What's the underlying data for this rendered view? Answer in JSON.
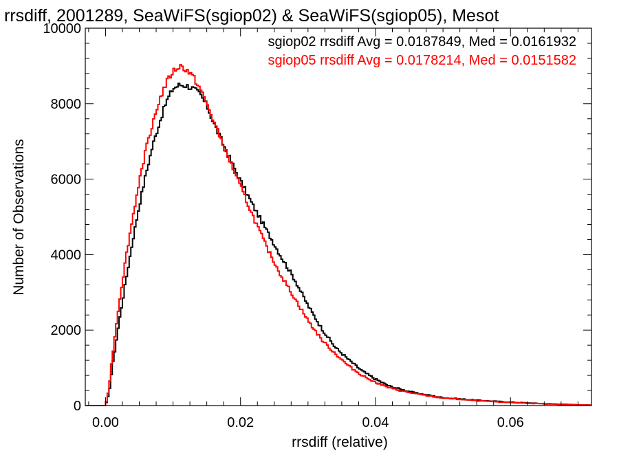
{
  "chart_data": {
    "type": "line",
    "title": "rrsdiff, 2001289, SeaWiFS(sgiop02) & SeaWiFS(sgiop05), Mesot",
    "xlabel": "rrsdiff (relative)",
    "ylabel": "Number of Observations",
    "xlim": [
      -0.003,
      0.072
    ],
    "ylim": [
      0,
      10000
    ],
    "x_ticks": [
      0.0,
      0.02,
      0.04,
      0.06
    ],
    "x_tick_labels": [
      "0.00",
      "0.02",
      "0.04",
      "0.06"
    ],
    "y_ticks": [
      0,
      2000,
      4000,
      6000,
      8000,
      10000
    ],
    "y_tick_labels": [
      "0",
      "2000",
      "4000",
      "6000",
      "8000",
      "10000"
    ],
    "grid": false,
    "step": true,
    "annotations": [
      {
        "text": "sgiop02 rrsdiff Avg = 0.0187849, Med = 0.0161932",
        "color": "#000000"
      },
      {
        "text": "sgiop05 rrsdiff Avg = 0.0178214, Med = 0.0151582",
        "color": "#ff0000"
      }
    ],
    "series": [
      {
        "color": "#000000",
        "x": [
          -0.003,
          0.0,
          0.0005,
          0.001,
          0.002,
          0.003,
          0.004,
          0.005,
          0.006,
          0.007,
          0.008,
          0.009,
          0.01,
          0.011,
          0.012,
          0.013,
          0.014,
          0.015,
          0.016,
          0.018,
          0.02,
          0.022,
          0.024,
          0.026,
          0.028,
          0.03,
          0.032,
          0.034,
          0.036,
          0.038,
          0.04,
          0.042,
          0.044,
          0.046,
          0.048,
          0.05,
          0.055,
          0.06,
          0.065,
          0.07,
          0.072
        ],
        "y": [
          0,
          0,
          300,
          1000,
          2200,
          3300,
          4350,
          5300,
          6150,
          6900,
          7500,
          8050,
          8400,
          8500,
          8480,
          8400,
          8250,
          7950,
          7500,
          6700,
          5950,
          5250,
          4600,
          3950,
          3350,
          2650,
          2050,
          1550,
          1220,
          920,
          700,
          520,
          420,
          330,
          270,
          210,
          140,
          90,
          50,
          20,
          10
        ]
      },
      {
        "color": "#ff0000",
        "x": [
          -0.003,
          0.0,
          0.0005,
          0.001,
          0.002,
          0.003,
          0.004,
          0.005,
          0.006,
          0.007,
          0.008,
          0.009,
          0.01,
          0.011,
          0.012,
          0.013,
          0.014,
          0.015,
          0.016,
          0.018,
          0.02,
          0.022,
          0.024,
          0.026,
          0.028,
          0.03,
          0.032,
          0.034,
          0.036,
          0.038,
          0.04,
          0.042,
          0.044,
          0.046,
          0.048,
          0.05,
          0.055,
          0.06,
          0.065,
          0.07,
          0.072
        ],
        "y": [
          0,
          0,
          450,
          1300,
          2700,
          3900,
          4950,
          5950,
          6800,
          7500,
          8100,
          8550,
          8850,
          9000,
          8900,
          8700,
          8400,
          8000,
          7550,
          6650,
          5800,
          4950,
          4150,
          3450,
          2850,
          2250,
          1750,
          1380,
          1050,
          800,
          620,
          470,
          380,
          310,
          250,
          200,
          130,
          80,
          45,
          18,
          8
        ]
      }
    ]
  }
}
